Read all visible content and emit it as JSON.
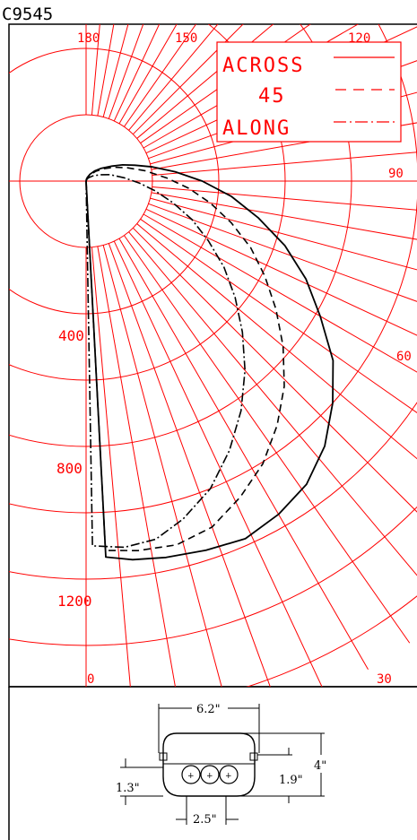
{
  "title": "C9545",
  "polar_chart": {
    "angle_labels": [
      {
        "text": "180",
        "deg": 180
      },
      {
        "text": "150",
        "deg": 150
      },
      {
        "text": "120",
        "deg": 120
      },
      {
        "text": "90",
        "deg": 90
      },
      {
        "text": "60",
        "deg": 60
      },
      {
        "text": "30",
        "deg": 30
      },
      {
        "text": "0",
        "deg": 0
      }
    ],
    "radial_labels": [
      {
        "text": "400",
        "value": 400
      },
      {
        "text": "800",
        "value": 800
      },
      {
        "text": "1200",
        "value": 1200
      }
    ],
    "legend": [
      {
        "label": "ACROSS",
        "style": "solid"
      },
      {
        "label": "45",
        "style": "dashed"
      },
      {
        "label": "ALONG",
        "style": "dashdot"
      }
    ],
    "colors": {
      "grid": "#ff0000",
      "curve": "#000000"
    }
  },
  "chart_data": {
    "type": "polar",
    "angle_unit": "degrees",
    "radial_max": 1500,
    "series": [
      {
        "name": "ACROSS",
        "points": [
          {
            "angle": 3,
            "value": 1135
          },
          {
            "angle": 7,
            "value": 1150
          },
          {
            "angle": 12,
            "value": 1160
          },
          {
            "angle": 18,
            "value": 1170
          },
          {
            "angle": 24,
            "value": 1180
          },
          {
            "angle": 30,
            "value": 1160
          },
          {
            "angle": 36,
            "value": 1130
          },
          {
            "angle": 42,
            "value": 1075
          },
          {
            "angle": 48,
            "value": 1000
          },
          {
            "angle": 54,
            "value": 920
          },
          {
            "angle": 60,
            "value": 815
          },
          {
            "angle": 66,
            "value": 725
          },
          {
            "angle": 72,
            "value": 630
          },
          {
            "angle": 78,
            "value": 530
          },
          {
            "angle": 84,
            "value": 440
          },
          {
            "angle": 90,
            "value": 350
          },
          {
            "angle": 96,
            "value": 270
          },
          {
            "angle": 102,
            "value": 205
          },
          {
            "angle": 108,
            "value": 155
          },
          {
            "angle": 114,
            "value": 120
          },
          {
            "angle": 120,
            "value": 90
          },
          {
            "angle": 130,
            "value": 60
          },
          {
            "angle": 140,
            "value": 40
          },
          {
            "angle": 150,
            "value": 24
          },
          {
            "angle": 160,
            "value": 12
          },
          {
            "angle": 170,
            "value": 5
          }
        ]
      },
      {
        "name": "45",
        "points": [
          {
            "angle": 3,
            "value": 1115
          },
          {
            "angle": 8,
            "value": 1125
          },
          {
            "angle": 14,
            "value": 1130
          },
          {
            "angle": 20,
            "value": 1110
          },
          {
            "angle": 26,
            "value": 1060
          },
          {
            "angle": 32,
            "value": 1005
          },
          {
            "angle": 38,
            "value": 935
          },
          {
            "angle": 44,
            "value": 860
          },
          {
            "angle": 50,
            "value": 775
          },
          {
            "angle": 56,
            "value": 690
          },
          {
            "angle": 62,
            "value": 610
          },
          {
            "angle": 68,
            "value": 535
          },
          {
            "angle": 74,
            "value": 455
          },
          {
            "angle": 80,
            "value": 380
          },
          {
            "angle": 86,
            "value": 310
          },
          {
            "angle": 92,
            "value": 245
          },
          {
            "angle": 100,
            "value": 180
          },
          {
            "angle": 108,
            "value": 130
          },
          {
            "angle": 116,
            "value": 95
          },
          {
            "angle": 125,
            "value": 65
          },
          {
            "angle": 135,
            "value": 42
          },
          {
            "angle": 148,
            "value": 22
          },
          {
            "angle": 160,
            "value": 10
          }
        ]
      },
      {
        "name": "ALONG",
        "points": [
          {
            "angle": 1,
            "value": 1100
          },
          {
            "angle": 6,
            "value": 1110
          },
          {
            "angle": 11,
            "value": 1100
          },
          {
            "angle": 16,
            "value": 1060
          },
          {
            "angle": 22,
            "value": 1000
          },
          {
            "angle": 28,
            "value": 920
          },
          {
            "angle": 34,
            "value": 835
          },
          {
            "angle": 40,
            "value": 745
          },
          {
            "angle": 46,
            "value": 655
          },
          {
            "angle": 52,
            "value": 570
          },
          {
            "angle": 58,
            "value": 490
          },
          {
            "angle": 64,
            "value": 410
          },
          {
            "angle": 70,
            "value": 340
          },
          {
            "angle": 76,
            "value": 270
          },
          {
            "angle": 82,
            "value": 210
          },
          {
            "angle": 88,
            "value": 160
          },
          {
            "angle": 95,
            "value": 115
          },
          {
            "angle": 105,
            "value": 75
          },
          {
            "angle": 115,
            "value": 45
          },
          {
            "angle": 128,
            "value": 25
          },
          {
            "angle": 145,
            "value": 12
          },
          {
            "angle": 160,
            "value": 5
          }
        ]
      }
    ]
  },
  "fixture": {
    "dim_width": "6.2\"",
    "dim_height": "4\"",
    "dim_left": "1.3\"",
    "dim_right": "1.9\"",
    "dim_bottom": "2.5\""
  }
}
